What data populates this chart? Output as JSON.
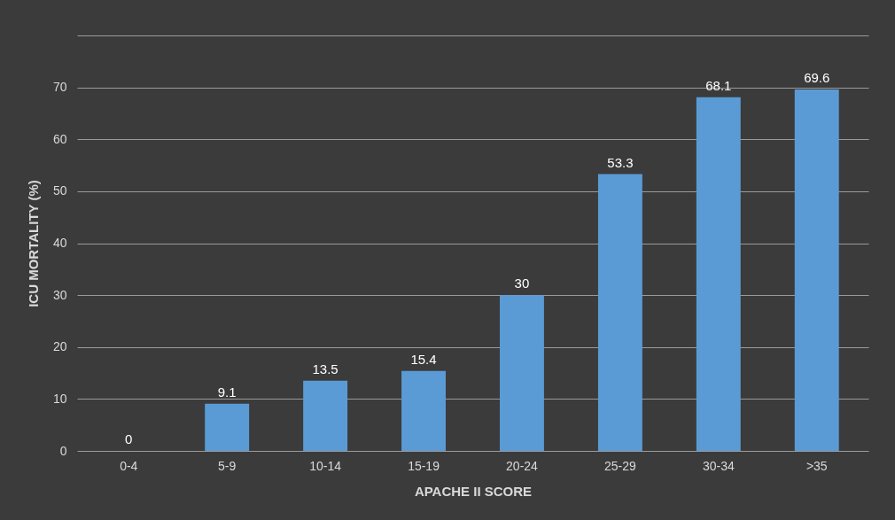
{
  "chart_data": {
    "type": "bar",
    "xlabel": "APACHE II SCORE",
    "ylabel": "ICU MORTALITY (%)",
    "categories": [
      "0-4",
      "5-9",
      "10-14",
      "15-19",
      "20-24",
      "25-29",
      "30-34",
      ">35"
    ],
    "values": [
      0,
      9.1,
      13.5,
      15.4,
      30,
      53.3,
      68.1,
      69.6
    ],
    "color": "#5b9bd5",
    "ylim": [
      0,
      80
    ],
    "yticks": [
      0,
      10,
      20,
      30,
      40,
      50,
      60,
      70,
      {
        "value": 80,
        "label": null
      }
    ],
    "grid": "y",
    "data_labels": true
  }
}
